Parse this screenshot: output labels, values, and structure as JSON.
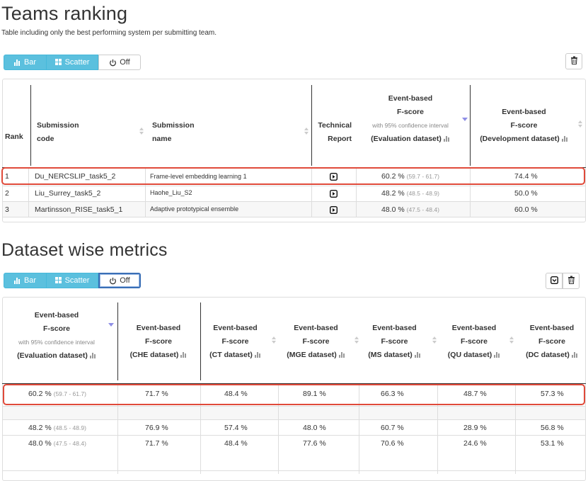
{
  "section1": {
    "title": "Teams ranking",
    "description": "Table including only the best performing system per submitting team.",
    "toolbar": {
      "bar_label": "Bar",
      "scatter_label": "Scatter",
      "off_label": "Off"
    },
    "headers": {
      "rank": "Rank",
      "submission_code": [
        "Submission",
        "code"
      ],
      "submission_name": [
        "Submission",
        "name"
      ],
      "technical_report": [
        "Technical",
        "Report"
      ],
      "eval_fscore": [
        "Event-based",
        "F-score",
        "with 95% confidence interval",
        "(Evaluation dataset)"
      ],
      "dev_fscore": [
        "Event-based",
        "F-score",
        "(Development dataset)"
      ]
    },
    "rows": [
      {
        "rank": "1",
        "code": "Du_NERCSLIP_task5_2",
        "name": "Frame-level embedding learning 1",
        "eval": "60.2 %",
        "ci": "(59.7 - 61.7)",
        "dev": "74.4 %"
      },
      {
        "rank": "2",
        "code": "Liu_Surrey_task5_2",
        "name": "Haohe_Liu_S2",
        "eval": "48.2 %",
        "ci": "(48.5 - 48.9)",
        "dev": "50.0 %"
      },
      {
        "rank": "3",
        "code": "Martinsson_RISE_task5_1",
        "name": "Adaptive prototypical ensemble",
        "eval": "48.0 %",
        "ci": "(47.5 - 48.4)",
        "dev": "60.0 %"
      }
    ]
  },
  "section2": {
    "title": "Dataset wise metrics",
    "toolbar": {
      "bar_label": "Bar",
      "scatter_label": "Scatter",
      "off_label": "Off"
    },
    "headers": {
      "eval": [
        "Event-based",
        "F-score",
        "with 95% confidence interval",
        "(Evaluation dataset)"
      ],
      "che": [
        "Event-based",
        "F-score",
        "(CHE dataset)"
      ],
      "ct": [
        "Event-based",
        "F-score",
        "(CT dataset)"
      ],
      "mge": [
        "Event-based",
        "F-score",
        "(MGE dataset)"
      ],
      "ms": [
        "Event-based",
        "F-score",
        "(MS dataset)"
      ],
      "qu": [
        "Event-based",
        "F-score",
        "(QU dataset)"
      ],
      "dc": [
        "Event-based",
        "F-score",
        "(DC dataset)"
      ]
    },
    "rows": [
      {
        "eval": "60.2 %",
        "ci": "(59.7 - 61.7)",
        "che": "71.7 %",
        "ct": "48.4 %",
        "mge": "89.1 %",
        "ms": "66.3 %",
        "qu": "48.7 %",
        "dc": "57.3 %"
      },
      {
        "eval": "48.2 %",
        "ci": "(48.5 - 48.9)",
        "che": "76.9 %",
        "ct": "57.4 %",
        "mge": "48.0 %",
        "ms": "60.7 %",
        "qu": "28.9 %",
        "dc": "56.8 %"
      },
      {
        "eval": "48.0 %",
        "ci": "(47.5 - 48.4)",
        "che": "71.7 %",
        "ct": "48.4 %",
        "mge": "77.6 %",
        "ms": "70.6 %",
        "qu": "24.6 %",
        "dc": "53.1 %"
      }
    ]
  },
  "icons": [
    "bar-chart-icon",
    "scatter-grid-icon",
    "power-icon",
    "trash-icon",
    "report-play-icon",
    "sort-icon",
    "column-chart-icon"
  ]
}
